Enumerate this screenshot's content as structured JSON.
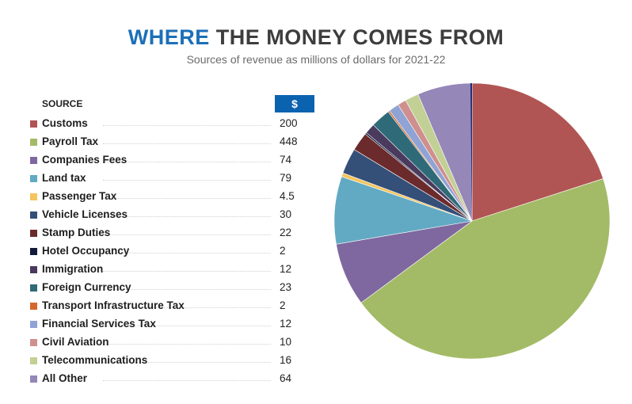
{
  "header": {
    "title_highlight": "WHERE",
    "title_rest": " THE MONEY COMES FROM",
    "subtitle": "Sources of revenue as millions of dollars for 2021-22"
  },
  "table": {
    "source_header": "SOURCE",
    "value_header": "$"
  },
  "chart_data": {
    "type": "pie",
    "title": "WHERE THE MONEY COMES FROM",
    "subtitle": "Sources of revenue as millions of dollars for 2021-22",
    "legend_position": "left",
    "slices": [
      {
        "label": "Customs",
        "value": 200,
        "value_text": "200",
        "color": "#b05553"
      },
      {
        "label": "Payroll Tax",
        "value": 448,
        "value_text": "448",
        "color": "#a3bb66"
      },
      {
        "label": "Companies Fees",
        "value": 74,
        "value_text": "74",
        "color": "#7f689f"
      },
      {
        "label": "Land tax",
        "value": 79,
        "value_text": "79",
        "color": "#62aac4"
      },
      {
        "label": "Passenger Tax",
        "value": 4.5,
        "value_text": "4.5",
        "color": "#f4c55e"
      },
      {
        "label": "Vehicle Licenses",
        "value": 30,
        "value_text": "30",
        "color": "#344f78"
      },
      {
        "label": "Stamp Duties",
        "value": 22,
        "value_text": "22",
        "color": "#6b2b2c"
      },
      {
        "label": "Hotel Occupancy",
        "value": 2,
        "value_text": "2",
        "color": "#111a3b"
      },
      {
        "label": "Immigration",
        "value": 12,
        "value_text": "12",
        "color": "#4a3a5d"
      },
      {
        "label": "Foreign Currency",
        "value": 23,
        "value_text": "23",
        "color": "#2f6a78"
      },
      {
        "label": "Transport Infrastructure Tax",
        "value": 2,
        "value_text": "2",
        "color": "#d4672c"
      },
      {
        "label": "Financial Services Tax",
        "value": 12,
        "value_text": "12",
        "color": "#8fa3d4"
      },
      {
        "label": "Civil Aviation",
        "value": 10,
        "value_text": "10",
        "color": "#cf8f8e"
      },
      {
        "label": "Telecommunications",
        "value": 16,
        "value_text": "16",
        "color": "#c2d095"
      },
      {
        "label": "All Other",
        "value": 64,
        "value_text": "64",
        "color": "#9587b8"
      }
    ],
    "extra_slice_colors": [
      "#1f2d7a"
    ]
  }
}
